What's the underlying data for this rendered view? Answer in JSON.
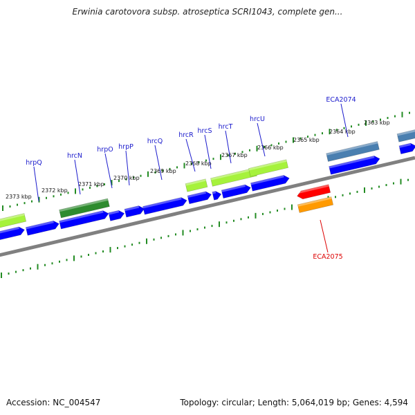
{
  "title": "Erwinia carotovora subsp. atroseptica SCRI1043, complete gen...",
  "footer": {
    "accession_label": "Accession: NC_004547",
    "topology_label": "Topology: circular; Length: 5,064,019 bp; Genes: 4,594"
  },
  "colors": {
    "backbone": "#808080",
    "tick": "#228b22",
    "gene_blue": "#0000ff",
    "gene_lightgreen": "#a6f23c",
    "gene_darkgreen": "#2e8b2e",
    "gene_steelblue": "#4a7fb0",
    "gene_red": "#ff0000",
    "gene_orange": "#ff9a00",
    "label_blue": "#1a1acc",
    "label_red": "#dd0000"
  },
  "scale": {
    "kbp_labels": [
      "2373 kbp",
      "2372 kbp",
      "2371 kbp",
      "2370 kbp",
      "2369 kbp",
      "2368 kbp",
      "2367 kbp",
      "2366 kbp",
      "2365 kbp",
      "2364 kbp",
      "2363 kbp"
    ]
  },
  "gene_labels": [
    {
      "text": "hrpQ",
      "color": "#1a1acc"
    },
    {
      "text": "hrcN",
      "color": "#1a1acc"
    },
    {
      "text": "hrpO",
      "color": "#1a1acc"
    },
    {
      "text": "hrpP",
      "color": "#1a1acc"
    },
    {
      "text": "hrcQ",
      "color": "#1a1acc"
    },
    {
      "text": "hrcR",
      "color": "#1a1acc"
    },
    {
      "text": "hrcS",
      "color": "#1a1acc"
    },
    {
      "text": "hrcT",
      "color": "#1a1acc"
    },
    {
      "text": "hrcU",
      "color": "#1a1acc"
    },
    {
      "text": "ECA2074",
      "color": "#1a1acc"
    },
    {
      "text": "ECA2075",
      "color": "#dd0000"
    }
  ]
}
